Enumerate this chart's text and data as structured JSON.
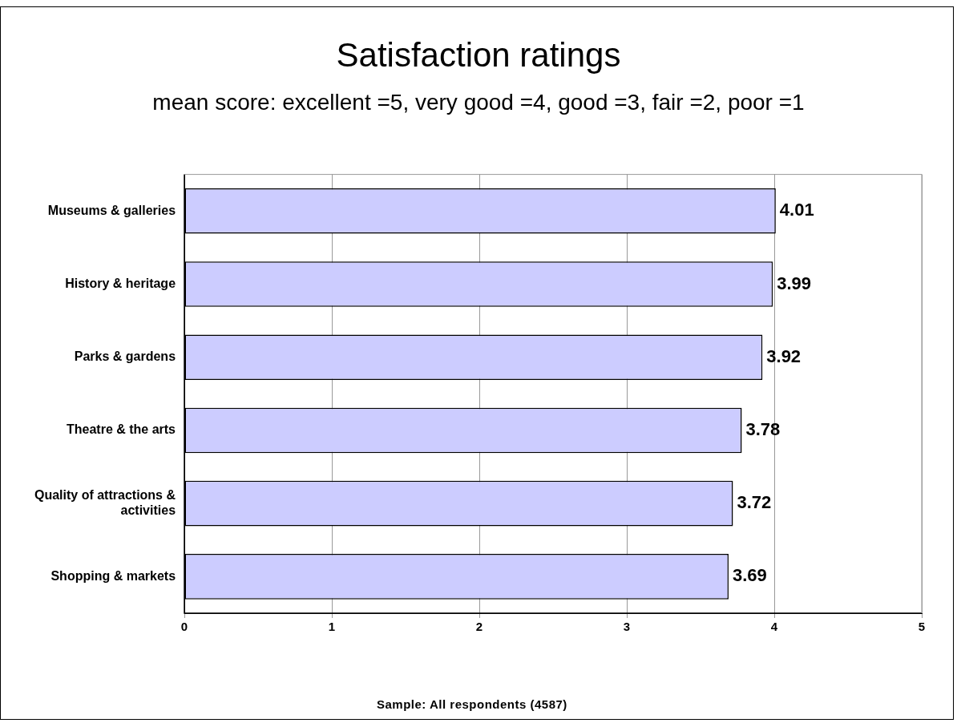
{
  "chart_data": {
    "type": "bar",
    "orientation": "horizontal",
    "title": "Satisfaction ratings",
    "subtitle": "mean score: excellent =5, very good =4, good =3, fair =2, poor =1",
    "categories": [
      "Museums & galleries",
      "History & heritage",
      "Parks & gardens",
      "Theatre & the arts",
      "Quality of attractions & activities",
      "Shopping & markets"
    ],
    "values": [
      4.01,
      3.99,
      3.92,
      3.78,
      3.72,
      3.69
    ],
    "color": "#ccccff",
    "xlim": [
      0,
      5
    ],
    "xticks": [
      0,
      1,
      2,
      3,
      4,
      5
    ],
    "grid": "x",
    "legend": false,
    "data_labels": true,
    "annotations": [
      "Sample: All respondents (4587)"
    ]
  }
}
